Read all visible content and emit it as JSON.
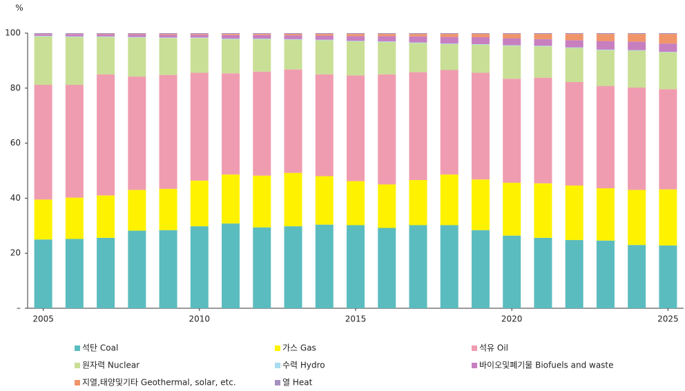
{
  "chart_data": {
    "type": "bar",
    "stacked": true,
    "y_unit_label": "%",
    "categories": [
      "2005",
      null,
      null,
      null,
      null,
      "2010",
      null,
      null,
      null,
      null,
      "2015",
      null,
      null,
      null,
      null,
      "2020",
      null,
      null,
      null,
      null,
      "2025"
    ],
    "series": [
      {
        "name": "석탄 Coal",
        "color": "#5bbcbf",
        "values": [
          25,
          25.2,
          25.6,
          28.2,
          28.4,
          29.8,
          30.8,
          29.4,
          29.8,
          30.4,
          30.2,
          29.2,
          30.2,
          30.2,
          28.4,
          26.4,
          25.6,
          24.8,
          24.6,
          23,
          22.8
        ]
      },
      {
        "name": "가스 Gas",
        "color": "#fff200",
        "values": [
          14.5,
          15,
          15.4,
          14.8,
          15,
          16.6,
          17.8,
          18.8,
          19.4,
          17.6,
          16,
          15.8,
          16.4,
          18.4,
          18.4,
          19.2,
          19.8,
          19.8,
          19,
          20,
          20.4
        ]
      },
      {
        "name": "석유 Oil",
        "color": "#f09cb0",
        "values": [
          41.7,
          41,
          44,
          41.2,
          41.4,
          39.2,
          36.8,
          37.8,
          37.6,
          37,
          38.4,
          40,
          39.2,
          38,
          38.8,
          37.8,
          38.4,
          37.6,
          37.2,
          37.2,
          36.4
        ]
      },
      {
        "name": "원자력 Nuclear",
        "color": "#c9df95",
        "values": [
          17.6,
          17.4,
          13.6,
          14.2,
          13.4,
          12.6,
          12.4,
          11.8,
          10.8,
          12.4,
          12.4,
          11.8,
          10.6,
          9.4,
          10.2,
          12,
          11.4,
          12.4,
          13,
          13.4,
          13.4
        ]
      },
      {
        "name": "수력 Hydro",
        "color": "#a8dcf0",
        "values": [
          0.2,
          0.2,
          0.2,
          0.2,
          0.2,
          0.2,
          0.2,
          0.2,
          0.2,
          0.2,
          0.2,
          0.2,
          0.2,
          0.2,
          0.2,
          0.2,
          0.2,
          0.2,
          0.2,
          0.2,
          0.2
        ]
      },
      {
        "name": "바이오및폐기물 Biofuels and waste",
        "color": "#c77fc0",
        "values": [
          0.6,
          0.8,
          0.7,
          0.9,
          1.0,
          1.0,
          1.3,
          1.3,
          1.4,
          1.5,
          1.7,
          1.9,
          2.2,
          2.4,
          2.5,
          2.5,
          2.4,
          2.6,
          3.1,
          3.1,
          3.0
        ]
      },
      {
        "name": "지열,태양및기타 Geothermal, solar, etc.",
        "color": "#f0956a",
        "values": [
          0.1,
          0.1,
          0.2,
          0.2,
          0.3,
          0.3,
          0.4,
          0.4,
          0.5,
          0.6,
          0.8,
          0.8,
          0.9,
          1.1,
          1.2,
          1.6,
          1.9,
          2.3,
          2.6,
          2.8,
          3.5
        ]
      },
      {
        "name": "열 Heat",
        "color": "#a690c0",
        "values": [
          0.3,
          0.3,
          0.3,
          0.3,
          0.3,
          0.3,
          0.3,
          0.3,
          0.3,
          0.3,
          0.3,
          0.3,
          0.3,
          0.3,
          0.3,
          0.3,
          0.3,
          0.3,
          0.3,
          0.3,
          0.3
        ]
      }
    ],
    "ylim": [
      0,
      100
    ],
    "yticks": [
      {
        "value": 0,
        "label": "–"
      },
      20,
      40,
      60,
      80,
      100
    ],
    "grid": false
  }
}
